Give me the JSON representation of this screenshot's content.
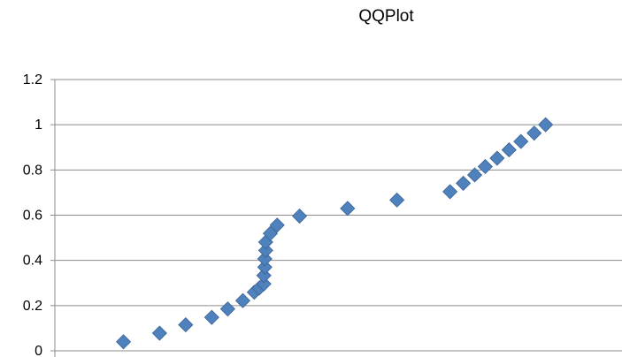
{
  "chart_data": {
    "type": "scatter",
    "title": "QQPlot",
    "xlabel": "",
    "ylabel": "",
    "ylim": [
      0,
      1.2
    ],
    "yticks": [
      0,
      0.2,
      0.4,
      0.6,
      0.8,
      1,
      1.2
    ],
    "ytick_labels": [
      "0",
      "0.2",
      "0.4",
      "0.6",
      "0.8",
      "1",
      "1.2"
    ],
    "xlim": [
      0,
      1.24
    ],
    "grid": "horizontal",
    "legend": "none",
    "marker": "diamond",
    "color": "#4F81BD",
    "points": [
      {
        "x": 0.15,
        "y": 0.04
      },
      {
        "x": 0.229,
        "y": 0.078
      },
      {
        "x": 0.286,
        "y": 0.115
      },
      {
        "x": 0.343,
        "y": 0.148
      },
      {
        "x": 0.378,
        "y": 0.185
      },
      {
        "x": 0.411,
        "y": 0.222
      },
      {
        "x": 0.436,
        "y": 0.259
      },
      {
        "x": 0.447,
        "y": 0.278
      },
      {
        "x": 0.457,
        "y": 0.296
      },
      {
        "x": 0.457,
        "y": 0.333
      },
      {
        "x": 0.459,
        "y": 0.37
      },
      {
        "x": 0.459,
        "y": 0.407
      },
      {
        "x": 0.461,
        "y": 0.444
      },
      {
        "x": 0.461,
        "y": 0.481
      },
      {
        "x": 0.471,
        "y": 0.519
      },
      {
        "x": 0.486,
        "y": 0.556
      },
      {
        "x": 0.535,
        "y": 0.596
      },
      {
        "x": 0.64,
        "y": 0.63
      },
      {
        "x": 0.748,
        "y": 0.667
      },
      {
        "x": 0.864,
        "y": 0.704
      },
      {
        "x": 0.893,
        "y": 0.741
      },
      {
        "x": 0.918,
        "y": 0.778
      },
      {
        "x": 0.941,
        "y": 0.815
      },
      {
        "x": 0.967,
        "y": 0.852
      },
      {
        "x": 0.993,
        "y": 0.889
      },
      {
        "x": 1.019,
        "y": 0.926
      },
      {
        "x": 1.048,
        "y": 0.963
      },
      {
        "x": 1.073,
        "y": 1.0
      }
    ]
  }
}
